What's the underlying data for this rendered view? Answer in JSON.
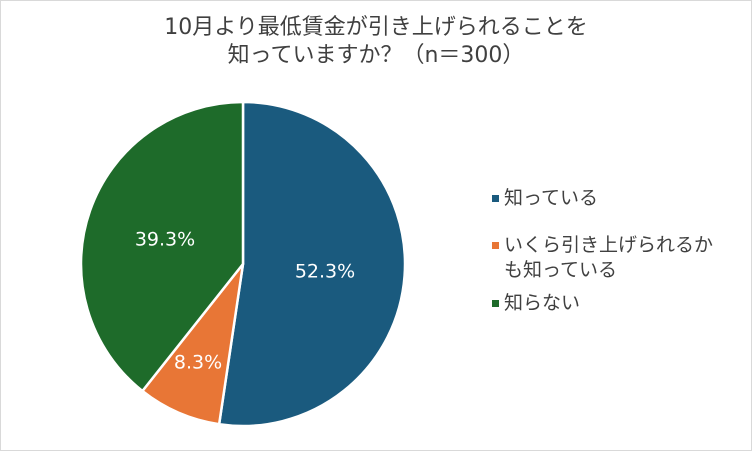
{
  "chart_data": {
    "type": "pie",
    "title_lines": [
      "10月より最低賃金が引き上げられることを",
      "知っていますか？（n＝300）"
    ],
    "slices": [
      {
        "label": "知っている",
        "value": 52.3,
        "display": "52.3%",
        "color": "#1a5a7e",
        "label_color": "#ffffff"
      },
      {
        "label": "いくら引き上げられるかも知っている",
        "label_lines": [
          "いくら引き上げられるか",
          "も知っている"
        ],
        "value": 8.3,
        "display": "8.3%",
        "color": "#e87636",
        "label_color": "#ffffff"
      },
      {
        "label": "知らない",
        "value": 39.3,
        "display": "39.3%",
        "color": "#1e6b2a",
        "label_color": "#ffffff"
      }
    ],
    "start_angle": "12 o'clock",
    "direction": "clockwise",
    "legend_position": "right"
  }
}
